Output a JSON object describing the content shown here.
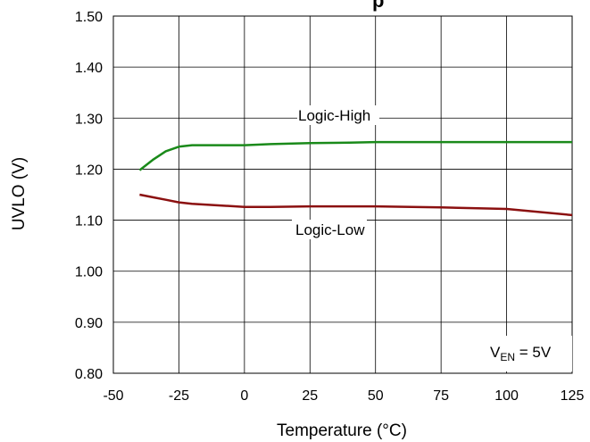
{
  "chart_data": {
    "type": "line",
    "title_fragment": "...p...",
    "xlabel": "Temperature (°C)",
    "ylabel": "UVLO (V)",
    "xlim": [
      -50,
      125
    ],
    "ylim": [
      0.8,
      1.5
    ],
    "x_ticks": [
      "-50",
      "-25",
      "0",
      "25",
      "50",
      "75",
      "100",
      "125"
    ],
    "y_ticks": [
      "0.80",
      "0.90",
      "1.00",
      "1.10",
      "1.20",
      "1.30",
      "1.40",
      "1.50"
    ],
    "grid": true,
    "annotation": {
      "base": "V",
      "subscript": "EN",
      "rest": " = 5V"
    },
    "series": [
      {
        "name": "Logic-High",
        "color": "#1a8a1a",
        "x": [
          -40,
          -35,
          -30,
          -25,
          -20,
          -10,
          0,
          10,
          25,
          40,
          50,
          75,
          100,
          125
        ],
        "y": [
          1.198,
          1.218,
          1.235,
          1.244,
          1.247,
          1.247,
          1.247,
          1.249,
          1.251,
          1.252,
          1.253,
          1.253,
          1.253,
          1.253
        ]
      },
      {
        "name": "Logic-Low",
        "color": "#8b1010",
        "x": [
          -40,
          -35,
          -30,
          -25,
          -20,
          -10,
          0,
          10,
          25,
          50,
          75,
          100,
          125
        ],
        "y": [
          1.15,
          1.145,
          1.14,
          1.135,
          1.132,
          1.129,
          1.126,
          1.126,
          1.127,
          1.127,
          1.125,
          1.122,
          1.11
        ]
      }
    ]
  }
}
